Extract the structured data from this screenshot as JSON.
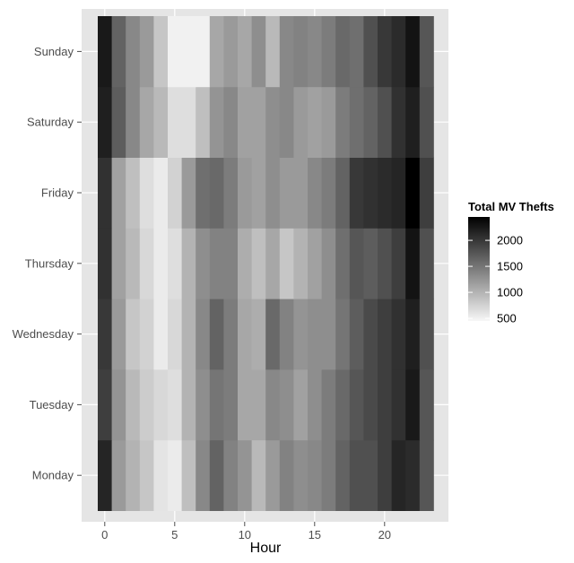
{
  "chart_data": {
    "type": "heatmap",
    "xlabel": "Hour",
    "ylabel": "",
    "x_ticks": [
      0,
      5,
      10,
      15,
      20
    ],
    "xlim": [
      -0.5,
      23.5
    ],
    "hours": [
      0,
      1,
      2,
      3,
      4,
      5,
      6,
      7,
      8,
      9,
      10,
      11,
      12,
      13,
      14,
      15,
      16,
      17,
      18,
      19,
      20,
      21,
      22,
      23
    ],
    "days": [
      "Monday",
      "Tuesday",
      "Wednesday",
      "Thursday",
      "Friday",
      "Saturday",
      "Sunday"
    ],
    "values": {
      "Monday": [
        2150,
        1200,
        1000,
        850,
        600,
        550,
        900,
        1350,
        1650,
        1400,
        1250,
        950,
        1200,
        1400,
        1300,
        1350,
        1450,
        1650,
        1800,
        1800,
        1950,
        2150,
        2100,
        1750
      ],
      "Tuesday": [
        1950,
        1250,
        950,
        800,
        700,
        650,
        1000,
        1300,
        1500,
        1450,
        1100,
        1100,
        1350,
        1300,
        1150,
        1300,
        1450,
        1600,
        1750,
        1850,
        1950,
        2050,
        2250,
        1750
      ],
      "Wednesday": [
        2000,
        1200,
        850,
        750,
        550,
        700,
        1000,
        1350,
        1650,
        1450,
        1100,
        1050,
        1600,
        1400,
        1250,
        1300,
        1300,
        1500,
        1700,
        1850,
        1950,
        2050,
        2200,
        1800
      ],
      "Thursday": [
        2050,
        1150,
        950,
        700,
        550,
        650,
        1000,
        1300,
        1400,
        1400,
        1050,
        900,
        1100,
        850,
        1000,
        1150,
        1300,
        1550,
        1750,
        1700,
        1800,
        1950,
        2300,
        1800
      ],
      "Friday": [
        2050,
        1150,
        900,
        650,
        550,
        750,
        1200,
        1550,
        1600,
        1450,
        1200,
        1150,
        1300,
        1200,
        1200,
        1350,
        1450,
        1650,
        2000,
        2050,
        2100,
        2150,
        2450,
        1950
      ],
      "Saturday": [
        2200,
        1700,
        1350,
        1100,
        950,
        650,
        650,
        900,
        1250,
        1350,
        1150,
        1150,
        1300,
        1350,
        1200,
        1150,
        1200,
        1450,
        1550,
        1650,
        1800,
        2050,
        2200,
        1800
      ],
      "Sunday": [
        2250,
        1650,
        1350,
        1200,
        850,
        500,
        500,
        500,
        1100,
        1200,
        1100,
        1300,
        950,
        1350,
        1400,
        1350,
        1450,
        1600,
        1550,
        1800,
        2000,
        2100,
        2300,
        1750
      ]
    },
    "legend": {
      "title": "Total MV Thefts",
      "ticks": [
        500,
        1000,
        1500,
        2000
      ],
      "range": [
        450,
        2450
      ],
      "placement": "right"
    },
    "grid": true,
    "panel_background": "#e5e5e5",
    "gridline_color": "#ffffff",
    "color_low": "#f7f7f7",
    "color_high": "#000000"
  }
}
